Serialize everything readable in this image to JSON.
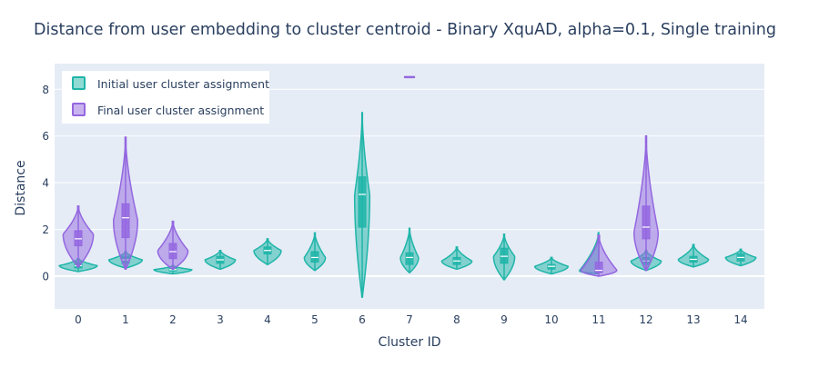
{
  "chart_data": {
    "type": "violin",
    "title": "Distance from user embedding to cluster centroid - Binary XquAD, alpha=0.1, Single training",
    "xlabel": "Cluster ID",
    "ylabel": "Distance",
    "categories": [
      0,
      1,
      2,
      3,
      4,
      5,
      6,
      7,
      8,
      9,
      10,
      11,
      12,
      13,
      14
    ],
    "x_ticks": [
      "0",
      "1",
      "2",
      "3",
      "4",
      "5",
      "6",
      "7",
      "8",
      "9",
      "10",
      "11",
      "12",
      "13",
      "14"
    ],
    "y_ticks": [
      "0",
      "2",
      "4",
      "6",
      "8"
    ],
    "ylim": [
      -1.4,
      9.1
    ],
    "grid": true,
    "legend_position": "top-left",
    "series": [
      {
        "name": "Initial user cluster assignment",
        "color": "#1fb5a8",
        "violins": [
          {
            "cluster": 0,
            "min": 0.2,
            "q1": 0.35,
            "median": 0.45,
            "q3": 0.6,
            "max": 0.75,
            "mode": 0.45,
            "width": 0.25
          },
          {
            "cluster": 1,
            "min": 0.35,
            "q1": 0.55,
            "median": 0.7,
            "q3": 0.85,
            "max": 1.05,
            "mode": 0.7,
            "width": 0.22
          },
          {
            "cluster": 2,
            "min": 0.1,
            "q1": 0.22,
            "median": 0.28,
            "q3": 0.35,
            "max": 0.45,
            "mode": 0.28,
            "width": 0.25
          },
          {
            "cluster": 3,
            "min": 0.3,
            "q1": 0.55,
            "median": 0.7,
            "q3": 0.85,
            "max": 1.1,
            "mode": 0.7,
            "width": 0.2
          },
          {
            "cluster": 4,
            "min": 0.5,
            "q1": 0.95,
            "median": 1.1,
            "q3": 1.25,
            "max": 1.6,
            "mode": 1.1,
            "width": 0.18
          },
          {
            "cluster": 5,
            "min": 0.25,
            "q1": 0.6,
            "median": 0.8,
            "q3": 1.05,
            "max": 1.85,
            "mode": 0.8,
            "width": 0.14
          },
          {
            "cluster": 6,
            "min": -0.9,
            "q1": 2.1,
            "median": 3.5,
            "q3": 4.25,
            "max": 7.0,
            "mode": 3.5,
            "width": 0.1
          },
          {
            "cluster": 7,
            "min": 0.15,
            "q1": 0.5,
            "median": 0.8,
            "q3": 1.0,
            "max": 2.05,
            "mode": 0.8,
            "width": 0.12
          },
          {
            "cluster": 8,
            "min": 0.3,
            "q1": 0.5,
            "median": 0.65,
            "q3": 0.8,
            "max": 1.25,
            "mode": 0.65,
            "width": 0.2
          },
          {
            "cluster": 9,
            "min": -0.15,
            "q1": 0.55,
            "median": 0.85,
            "q3": 1.2,
            "max": 1.8,
            "mode": 0.85,
            "width": 0.14
          },
          {
            "cluster": 10,
            "min": 0.1,
            "q1": 0.3,
            "median": 0.42,
            "q3": 0.5,
            "max": 0.8,
            "mode": 0.42,
            "width": 0.22
          },
          {
            "cluster": 11,
            "min": 0.1,
            "q1": 0.18,
            "median": 0.22,
            "q3": 0.28,
            "max": 1.9,
            "mode": 0.22,
            "width": 0.26
          },
          {
            "cluster": 12,
            "min": 0.25,
            "q1": 0.5,
            "median": 0.65,
            "q3": 0.8,
            "max": 1.1,
            "mode": 0.65,
            "width": 0.2
          },
          {
            "cluster": 13,
            "min": 0.4,
            "q1": 0.6,
            "median": 0.72,
            "q3": 0.85,
            "max": 1.35,
            "mode": 0.72,
            "width": 0.2
          },
          {
            "cluster": 14,
            "min": 0.45,
            "q1": 0.65,
            "median": 0.8,
            "q3": 0.95,
            "max": 1.15,
            "mode": 0.8,
            "width": 0.2
          }
        ]
      },
      {
        "name": "Final user cluster assignment",
        "color": "#9467e0",
        "violins": [
          {
            "cluster": 0,
            "min": 0.4,
            "q1": 1.3,
            "median": 1.6,
            "q3": 1.95,
            "max": 3.0,
            "mode": 1.8,
            "width": 0.2
          },
          {
            "cluster": 1,
            "min": 0.3,
            "q1": 1.65,
            "median": 2.5,
            "q3": 3.1,
            "max": 5.95,
            "mode": 2.4,
            "width": 0.16
          },
          {
            "cluster": 2,
            "min": 0.3,
            "q1": 0.75,
            "median": 1.05,
            "q3": 1.4,
            "max": 2.35,
            "mode": 1.1,
            "width": 0.2
          },
          {
            "cluster": 7,
            "min": 8.52,
            "q1": 8.52,
            "median": 8.52,
            "q3": 8.52,
            "max": 8.52,
            "mode": 8.52,
            "width": 0.08
          },
          {
            "cluster": 11,
            "min": 0.0,
            "q1": 0.15,
            "median": 0.25,
            "q3": 0.6,
            "max": 1.75,
            "mode": 0.25,
            "width": 0.24
          },
          {
            "cluster": 12,
            "min": 0.25,
            "q1": 1.6,
            "median": 2.1,
            "q3": 3.0,
            "max": 6.0,
            "mode": 1.9,
            "width": 0.16
          }
        ]
      }
    ]
  }
}
